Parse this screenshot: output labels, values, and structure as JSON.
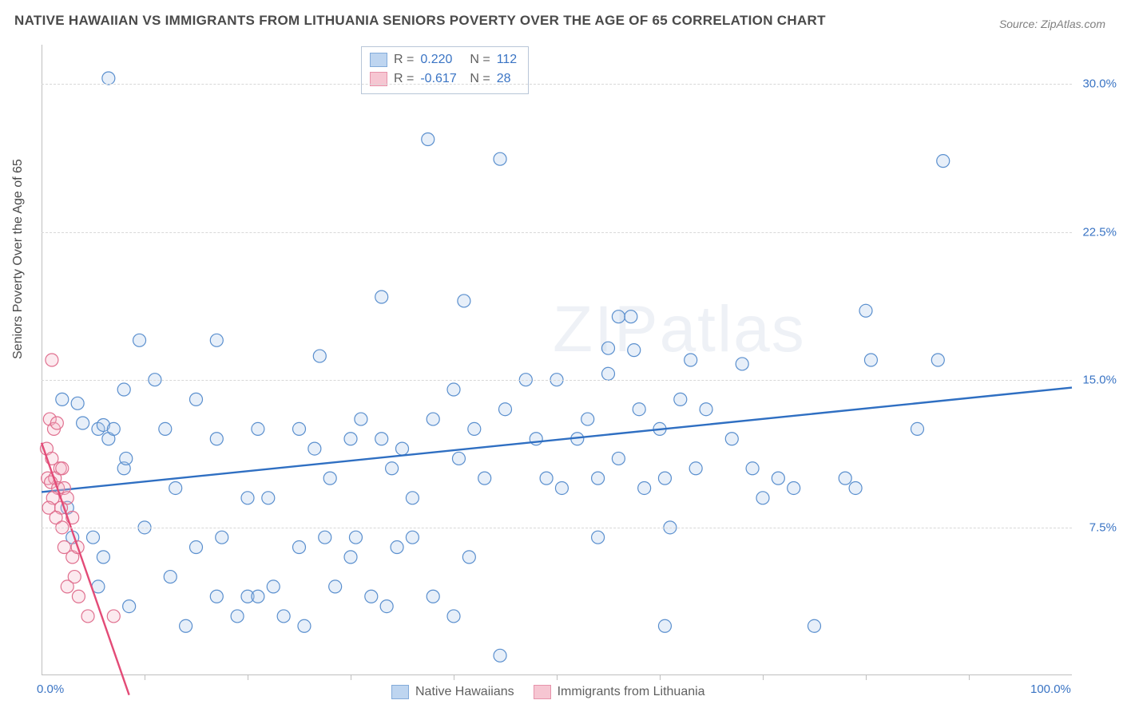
{
  "title": "NATIVE HAWAIIAN VS IMMIGRANTS FROM LITHUANIA SENIORS POVERTY OVER THE AGE OF 65 CORRELATION CHART",
  "source": "Source: ZipAtlas.com",
  "y_axis_label": "Seniors Poverty Over the Age of 65",
  "watermark": "ZIPatlas",
  "chart": {
    "type": "scatter",
    "background_color": "#ffffff",
    "grid_color": "#d8d8d8",
    "axis_color": "#bfbfbf",
    "xlim": [
      0,
      100
    ],
    "ylim": [
      0,
      32
    ],
    "x_ticks": [
      0,
      100
    ],
    "x_tick_labels": [
      "0.0%",
      "100.0%"
    ],
    "x_minor_ticks": [
      10,
      20,
      30,
      40,
      50,
      60,
      70,
      80,
      90
    ],
    "y_ticks": [
      7.5,
      15.0,
      22.5,
      30.0
    ],
    "y_tick_labels": [
      "7.5%",
      "15.0%",
      "22.5%",
      "30.0%"
    ],
    "x_tick_color": "#3a74c4",
    "y_tick_color": "#3a74c4",
    "marker_radius": 8,
    "marker_stroke_width": 1.2,
    "marker_fill_opacity": 0.28,
    "trendline_width": 2.4,
    "series": [
      {
        "name": "Native Hawaiians",
        "color_stroke": "#5a8fce",
        "color_fill": "#a9c7eb",
        "trendline_color": "#2f6fc2",
        "R": "0.220",
        "N": "112",
        "trendline": {
          "x1": 0,
          "y1": 9.3,
          "x2": 100,
          "y2": 14.6
        },
        "points": [
          [
            6.5,
            30.3
          ],
          [
            35.9,
            31.0
          ],
          [
            37.5,
            27.2
          ],
          [
            44.5,
            26.2
          ],
          [
            87.5,
            26.1
          ],
          [
            33.0,
            19.2
          ],
          [
            41.0,
            19.0
          ],
          [
            56.0,
            18.2
          ],
          [
            57.2,
            18.2
          ],
          [
            80.0,
            18.5
          ],
          [
            9.5,
            17.0
          ],
          [
            17.0,
            17.0
          ],
          [
            27.0,
            16.2
          ],
          [
            50.0,
            15.0
          ],
          [
            55.0,
            15.3
          ],
          [
            55.0,
            16.6
          ],
          [
            57.5,
            16.5
          ],
          [
            63.0,
            16.0
          ],
          [
            68.0,
            15.8
          ],
          [
            80.5,
            16.0
          ],
          [
            87.0,
            16.0
          ],
          [
            2.0,
            14.0
          ],
          [
            3.5,
            13.8
          ],
          [
            8.0,
            14.5
          ],
          [
            4.0,
            12.8
          ],
          [
            5.5,
            12.5
          ],
          [
            6.0,
            12.7
          ],
          [
            6.5,
            12.0
          ],
          [
            7.0,
            12.5
          ],
          [
            8.0,
            10.5
          ],
          [
            8.2,
            11.0
          ],
          [
            11.0,
            15.0
          ],
          [
            12.0,
            12.5
          ],
          [
            13.0,
            9.5
          ],
          [
            15.0,
            14.0
          ],
          [
            17.0,
            12.0
          ],
          [
            20.0,
            9.0
          ],
          [
            21.0,
            12.5
          ],
          [
            22.0,
            9.0
          ],
          [
            25.0,
            12.5
          ],
          [
            26.5,
            11.5
          ],
          [
            28.0,
            10.0
          ],
          [
            30.0,
            12.0
          ],
          [
            31.0,
            13.0
          ],
          [
            33.0,
            12.0
          ],
          [
            34.0,
            10.5
          ],
          [
            35.0,
            11.5
          ],
          [
            36.0,
            9.0
          ],
          [
            38.0,
            13.0
          ],
          [
            40.0,
            14.5
          ],
          [
            40.5,
            11.0
          ],
          [
            42.0,
            12.5
          ],
          [
            43.0,
            10.0
          ],
          [
            45.0,
            13.5
          ],
          [
            47.0,
            15.0
          ],
          [
            48.0,
            12.0
          ],
          [
            49.0,
            10.0
          ],
          [
            50.5,
            9.5
          ],
          [
            52.0,
            12.0
          ],
          [
            53.0,
            13.0
          ],
          [
            54.0,
            10.0
          ],
          [
            56.0,
            11.0
          ],
          [
            58.0,
            13.5
          ],
          [
            58.5,
            9.5
          ],
          [
            60.0,
            12.5
          ],
          [
            60.5,
            10.0
          ],
          [
            62.0,
            14.0
          ],
          [
            63.5,
            10.5
          ],
          [
            64.5,
            13.5
          ],
          [
            67.0,
            12.0
          ],
          [
            69.0,
            10.5
          ],
          [
            70.0,
            9.0
          ],
          [
            71.5,
            10.0
          ],
          [
            73.0,
            9.5
          ],
          [
            78.0,
            10.0
          ],
          [
            85.0,
            12.5
          ],
          [
            2.5,
            8.5
          ],
          [
            3.0,
            7.0
          ],
          [
            5.0,
            7.0
          ],
          [
            5.5,
            4.5
          ],
          [
            6.0,
            6.0
          ],
          [
            8.5,
            3.5
          ],
          [
            10.0,
            7.5
          ],
          [
            12.5,
            5.0
          ],
          [
            14.0,
            2.5
          ],
          [
            15.0,
            6.5
          ],
          [
            17.0,
            4.0
          ],
          [
            17.5,
            7.0
          ],
          [
            19.0,
            3.0
          ],
          [
            20.0,
            4.0
          ],
          [
            21.0,
            4.0
          ],
          [
            22.5,
            4.5
          ],
          [
            23.5,
            3.0
          ],
          [
            25.0,
            6.5
          ],
          [
            25.5,
            2.5
          ],
          [
            27.5,
            7.0
          ],
          [
            28.5,
            4.5
          ],
          [
            30.0,
            6.0
          ],
          [
            30.5,
            7.0
          ],
          [
            32.0,
            4.0
          ],
          [
            33.5,
            3.5
          ],
          [
            34.5,
            6.5
          ],
          [
            36.0,
            7.0
          ],
          [
            38.0,
            4.0
          ],
          [
            40.0,
            3.0
          ],
          [
            41.5,
            6.0
          ],
          [
            44.5,
            1.0
          ],
          [
            54.0,
            7.0
          ],
          [
            60.5,
            2.5
          ],
          [
            61.0,
            7.5
          ],
          [
            75.0,
            2.5
          ],
          [
            79.0,
            9.5
          ]
        ]
      },
      {
        "name": "Immigrants from Lithuania",
        "color_stroke": "#e0708f",
        "color_fill": "#f3b4c4",
        "trendline_color": "#e34b77",
        "R": "-0.617",
        "N": "28",
        "trendline": {
          "x1": 0,
          "y1": 11.8,
          "x2": 8.5,
          "y2": -1.0
        },
        "points": [
          [
            1.0,
            16.0
          ],
          [
            0.8,
            13.0
          ],
          [
            1.2,
            12.5
          ],
          [
            0.5,
            11.5
          ],
          [
            1.5,
            12.8
          ],
          [
            1.0,
            11.0
          ],
          [
            1.8,
            10.5
          ],
          [
            0.6,
            10.0
          ],
          [
            1.3,
            10.0
          ],
          [
            2.0,
            10.5
          ],
          [
            0.9,
            9.8
          ],
          [
            1.6,
            9.5
          ],
          [
            2.2,
            9.5
          ],
          [
            1.1,
            9.0
          ],
          [
            0.7,
            8.5
          ],
          [
            1.9,
            8.5
          ],
          [
            2.5,
            9.0
          ],
          [
            1.4,
            8.0
          ],
          [
            2.0,
            7.5
          ],
          [
            3.0,
            8.0
          ],
          [
            2.2,
            6.5
          ],
          [
            3.0,
            6.0
          ],
          [
            3.5,
            6.5
          ],
          [
            2.5,
            4.5
          ],
          [
            3.2,
            5.0
          ],
          [
            3.6,
            4.0
          ],
          [
            4.5,
            3.0
          ],
          [
            7.0,
            3.0
          ]
        ]
      }
    ],
    "legend_top": {
      "R_label": "R  =",
      "N_label": "N  =",
      "label_color": "#606060",
      "value_color": "#3a74c4"
    },
    "legend_bottom": {
      "items": [
        "Native Hawaiians",
        "Immigrants from Lithuania"
      ]
    }
  }
}
